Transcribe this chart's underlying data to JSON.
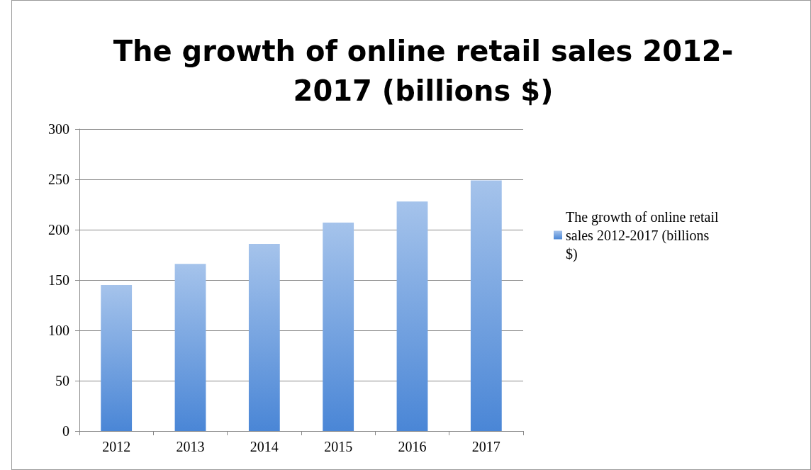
{
  "chart_data": {
    "type": "bar",
    "title": "The growth of online retail sales 2012-\n2017 (billions $)",
    "categories": [
      "2012",
      "2013",
      "2014",
      "2015",
      "2016",
      "2017"
    ],
    "series": [
      {
        "name": "The growth of online retail sales 2012-2017 (billions $)",
        "color": "#4a86d6",
        "values": [
          145,
          166,
          186,
          207,
          228,
          249
        ]
      }
    ],
    "ylim": [
      0,
      300
    ],
    "yticks": [
      0,
      50,
      100,
      150,
      200,
      250,
      300
    ],
    "grid": "y",
    "legend": "right"
  }
}
